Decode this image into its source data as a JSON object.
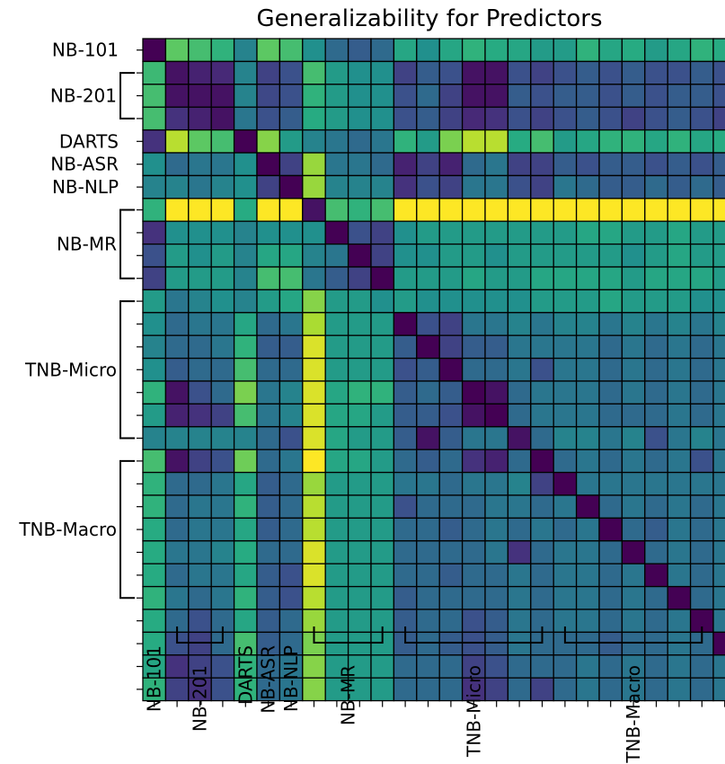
{
  "chart_data": {
    "type": "heatmap",
    "title": "Generalizability for Predictors",
    "groups": [
      {
        "name": "NB-101",
        "count": 1
      },
      {
        "name": "NB-201",
        "count": 3
      },
      {
        "name": "DARTS",
        "count": 1
      },
      {
        "name": "NB-ASR",
        "count": 1
      },
      {
        "name": "NB-NLP",
        "count": 1
      },
      {
        "name": "NB-MR",
        "count": 4
      },
      {
        "name": "TNB-Micro",
        "count": 7
      },
      {
        "name": "TNB-Macro",
        "count": 7
      }
    ],
    "colormap": "viridis",
    "value_range": [
      0,
      1
    ],
    "matrix": [
      [
        0.0,
        0.75,
        0.7,
        0.65,
        0.45,
        0.75,
        0.7,
        0.5,
        0.35,
        0.3,
        0.35,
        0.6,
        0.5,
        0.6,
        0.65,
        0.62,
        0.6,
        0.55,
        0.55,
        0.65,
        0.6,
        0.62,
        0.55,
        0.6,
        0.65,
        0.62,
        0.6,
        0.6,
        0.65
      ],
      [
        0.68,
        0.05,
        0.1,
        0.12,
        0.45,
        0.2,
        0.25,
        0.7,
        0.55,
        0.5,
        0.5,
        0.2,
        0.3,
        0.25,
        0.05,
        0.05,
        0.25,
        0.2,
        0.25,
        0.3,
        0.25,
        0.3,
        0.25,
        0.25,
        0.3,
        0.25,
        0.3,
        0.25,
        0.3
      ],
      [
        0.7,
        0.05,
        0.05,
        0.05,
        0.45,
        0.22,
        0.25,
        0.65,
        0.55,
        0.5,
        0.5,
        0.25,
        0.35,
        0.2,
        0.05,
        0.05,
        0.3,
        0.25,
        0.3,
        0.3,
        0.25,
        0.3,
        0.25,
        0.3,
        0.3,
        0.25,
        0.3,
        0.25,
        0.3
      ],
      [
        0.7,
        0.15,
        0.1,
        0.05,
        0.4,
        0.25,
        0.3,
        0.62,
        0.55,
        0.5,
        0.5,
        0.25,
        0.3,
        0.2,
        0.12,
        0.15,
        0.25,
        0.2,
        0.25,
        0.3,
        0.25,
        0.2,
        0.25,
        0.3,
        0.25,
        0.2,
        0.3,
        0.25,
        0.2
      ],
      [
        0.15,
        0.9,
        0.75,
        0.7,
        0.0,
        0.82,
        0.55,
        0.45,
        0.4,
        0.35,
        0.4,
        0.65,
        0.55,
        0.8,
        0.9,
        0.9,
        0.62,
        0.7,
        0.55,
        0.6,
        0.65,
        0.65,
        0.6,
        0.65,
        0.6,
        0.62,
        0.65,
        0.62,
        0.7
      ],
      [
        0.5,
        0.35,
        0.4,
        0.4,
        0.5,
        0.0,
        0.2,
        0.85,
        0.4,
        0.4,
        0.35,
        0.1,
        0.2,
        0.1,
        0.35,
        0.4,
        0.2,
        0.2,
        0.3,
        0.25,
        0.3,
        0.3,
        0.25,
        0.3,
        0.25,
        0.3,
        0.25,
        0.3,
        0.35
      ],
      [
        0.45,
        0.45,
        0.4,
        0.45,
        0.5,
        0.2,
        0.0,
        0.85,
        0.45,
        0.45,
        0.45,
        0.15,
        0.25,
        0.2,
        0.4,
        0.4,
        0.25,
        0.2,
        0.4,
        0.35,
        0.3,
        0.3,
        0.35,
        0.3,
        0.35,
        0.3,
        0.35,
        0.3,
        0.35
      ],
      [
        0.65,
        1.0,
        1.0,
        1.0,
        0.62,
        1.0,
        1.0,
        0.05,
        0.7,
        0.65,
        0.7,
        1.0,
        1.0,
        1.0,
        1.0,
        1.0,
        1.0,
        1.0,
        1.0,
        1.0,
        1.0,
        1.0,
        1.0,
        1.0,
        1.0,
        1.0,
        1.0,
        1.0,
        1.0
      ],
      [
        0.15,
        0.5,
        0.5,
        0.5,
        0.45,
        0.5,
        0.5,
        0.5,
        0.0,
        0.25,
        0.2,
        0.5,
        0.55,
        0.55,
        0.55,
        0.55,
        0.55,
        0.55,
        0.55,
        0.6,
        0.6,
        0.55,
        0.55,
        0.6,
        0.55,
        0.55,
        0.6,
        0.55,
        0.55
      ],
      [
        0.25,
        0.55,
        0.5,
        0.55,
        0.45,
        0.6,
        0.6,
        0.45,
        0.4,
        0.0,
        0.2,
        0.5,
        0.5,
        0.55,
        0.55,
        0.5,
        0.55,
        0.55,
        0.55,
        0.55,
        0.55,
        0.5,
        0.55,
        0.6,
        0.55,
        0.55,
        0.55,
        0.55,
        0.6
      ],
      [
        0.2,
        0.55,
        0.55,
        0.55,
        0.45,
        0.7,
        0.7,
        0.4,
        0.3,
        0.2,
        0.0,
        0.55,
        0.55,
        0.55,
        0.6,
        0.55,
        0.55,
        0.6,
        0.6,
        0.6,
        0.6,
        0.55,
        0.6,
        0.6,
        0.6,
        0.55,
        0.6,
        0.55,
        0.75
      ],
      [
        0.55,
        0.4,
        0.45,
        0.5,
        0.45,
        0.55,
        0.6,
        0.82,
        0.55,
        0.55,
        0.5,
        0.55,
        0.5,
        0.5,
        0.5,
        0.5,
        0.5,
        0.55,
        0.55,
        0.55,
        0.6,
        0.55,
        0.55,
        0.55,
        0.5,
        0.5,
        0.55,
        0.6,
        0.75
      ],
      [
        0.5,
        0.35,
        0.4,
        0.4,
        0.6,
        0.35,
        0.4,
        0.88,
        0.55,
        0.55,
        0.55,
        0.0,
        0.25,
        0.2,
        0.4,
        0.4,
        0.45,
        0.4,
        0.45,
        0.45,
        0.4,
        0.45,
        0.4,
        0.45,
        0.4,
        0.45,
        0.4,
        0.45,
        0.55
      ],
      [
        0.45,
        0.35,
        0.35,
        0.4,
        0.65,
        0.3,
        0.3,
        0.95,
        0.55,
        0.55,
        0.55,
        0.3,
        0.0,
        0.2,
        0.3,
        0.3,
        0.4,
        0.4,
        0.4,
        0.4,
        0.35,
        0.4,
        0.35,
        0.4,
        0.35,
        0.4,
        0.35,
        0.4,
        0.5
      ],
      [
        0.5,
        0.3,
        0.35,
        0.35,
        0.7,
        0.35,
        0.35,
        0.95,
        0.55,
        0.55,
        0.55,
        0.25,
        0.3,
        0.0,
        0.35,
        0.35,
        0.4,
        0.25,
        0.4,
        0.4,
        0.35,
        0.4,
        0.35,
        0.4,
        0.35,
        0.4,
        0.35,
        0.4,
        0.5
      ],
      [
        0.65,
        0.05,
        0.25,
        0.35,
        0.8,
        0.4,
        0.45,
        0.95,
        0.6,
        0.65,
        0.65,
        0.3,
        0.35,
        0.3,
        0.0,
        0.05,
        0.35,
        0.4,
        0.4,
        0.4,
        0.35,
        0.4,
        0.35,
        0.4,
        0.35,
        0.4,
        0.35,
        0.4,
        0.55
      ],
      [
        0.55,
        0.1,
        0.15,
        0.2,
        0.7,
        0.4,
        0.45,
        0.95,
        0.6,
        0.6,
        0.55,
        0.3,
        0.3,
        0.25,
        0.05,
        0.0,
        0.35,
        0.4,
        0.4,
        0.4,
        0.35,
        0.35,
        0.35,
        0.4,
        0.35,
        0.4,
        0.35,
        0.4,
        0.5
      ],
      [
        0.45,
        0.45,
        0.45,
        0.45,
        0.45,
        0.35,
        0.25,
        0.95,
        0.6,
        0.55,
        0.55,
        0.3,
        0.05,
        0.3,
        0.4,
        0.4,
        0.05,
        0.35,
        0.45,
        0.45,
        0.4,
        0.45,
        0.25,
        0.4,
        0.45,
        0.4,
        0.45,
        0.4,
        0.55
      ],
      [
        0.7,
        0.05,
        0.2,
        0.25,
        0.78,
        0.35,
        0.4,
        1.0,
        0.6,
        0.6,
        0.55,
        0.35,
        0.3,
        0.35,
        0.15,
        0.1,
        0.35,
        0.0,
        0.35,
        0.4,
        0.35,
        0.4,
        0.35,
        0.4,
        0.25,
        0.4,
        0.35,
        0.4,
        0.5
      ],
      [
        0.65,
        0.35,
        0.35,
        0.4,
        0.6,
        0.3,
        0.35,
        0.85,
        0.55,
        0.55,
        0.55,
        0.4,
        0.4,
        0.35,
        0.4,
        0.4,
        0.45,
        0.2,
        0.0,
        0.4,
        0.4,
        0.4,
        0.4,
        0.4,
        0.4,
        0.4,
        0.4,
        0.25,
        0.45
      ],
      [
        0.65,
        0.35,
        0.4,
        0.4,
        0.65,
        0.3,
        0.35,
        0.9,
        0.55,
        0.55,
        0.55,
        0.25,
        0.35,
        0.35,
        0.35,
        0.4,
        0.4,
        0.35,
        0.4,
        0.0,
        0.35,
        0.4,
        0.35,
        0.4,
        0.35,
        0.4,
        0.35,
        0.4,
        0.5
      ],
      [
        0.62,
        0.35,
        0.4,
        0.4,
        0.6,
        0.3,
        0.35,
        0.9,
        0.55,
        0.55,
        0.55,
        0.35,
        0.35,
        0.3,
        0.35,
        0.4,
        0.35,
        0.4,
        0.35,
        0.4,
        0.0,
        0.35,
        0.3,
        0.4,
        0.35,
        0.4,
        0.35,
        0.4,
        0.5
      ],
      [
        0.62,
        0.4,
        0.4,
        0.45,
        0.62,
        0.35,
        0.35,
        0.95,
        0.55,
        0.55,
        0.55,
        0.35,
        0.35,
        0.35,
        0.35,
        0.4,
        0.15,
        0.35,
        0.4,
        0.4,
        0.35,
        0.0,
        0.35,
        0.4,
        0.35,
        0.4,
        0.35,
        0.4,
        0.5
      ],
      [
        0.62,
        0.35,
        0.4,
        0.4,
        0.6,
        0.3,
        0.25,
        0.95,
        0.55,
        0.55,
        0.55,
        0.35,
        0.35,
        0.3,
        0.35,
        0.35,
        0.4,
        0.35,
        0.4,
        0.4,
        0.35,
        0.4,
        0.0,
        0.4,
        0.35,
        0.4,
        0.35,
        0.4,
        0.5
      ],
      [
        0.65,
        0.4,
        0.35,
        0.4,
        0.65,
        0.3,
        0.25,
        0.9,
        0.55,
        0.55,
        0.55,
        0.3,
        0.35,
        0.35,
        0.35,
        0.35,
        0.4,
        0.35,
        0.4,
        0.4,
        0.35,
        0.4,
        0.35,
        0.0,
        0.35,
        0.4,
        0.35,
        0.4,
        0.5
      ],
      [
        0.62,
        0.35,
        0.25,
        0.35,
        0.6,
        0.3,
        0.35,
        0.85,
        0.55,
        0.55,
        0.55,
        0.3,
        0.35,
        0.35,
        0.25,
        0.3,
        0.4,
        0.35,
        0.4,
        0.4,
        0.35,
        0.4,
        0.35,
        0.4,
        0.0,
        0.4,
        0.35,
        0.4,
        0.5
      ],
      [
        0.62,
        0.25,
        0.2,
        0.35,
        0.7,
        0.3,
        0.35,
        0.8,
        0.55,
        0.55,
        0.55,
        0.3,
        0.35,
        0.3,
        0.25,
        0.3,
        0.4,
        0.35,
        0.35,
        0.35,
        0.3,
        0.35,
        0.35,
        0.4,
        0.35,
        0.0,
        0.35,
        0.4,
        0.5
      ],
      [
        0.6,
        0.15,
        0.2,
        0.25,
        0.65,
        0.35,
        0.4,
        0.82,
        0.55,
        0.55,
        0.55,
        0.35,
        0.35,
        0.35,
        0.2,
        0.25,
        0.35,
        0.35,
        0.35,
        0.4,
        0.35,
        0.4,
        0.35,
        0.4,
        0.35,
        0.4,
        0.0,
        0.1,
        0.4
      ],
      [
        0.65,
        0.2,
        0.15,
        0.25,
        0.65,
        0.35,
        0.4,
        0.82,
        0.55,
        0.55,
        0.55,
        0.35,
        0.35,
        0.35,
        0.15,
        0.2,
        0.35,
        0.2,
        0.35,
        0.4,
        0.35,
        0.4,
        0.35,
        0.4,
        0.35,
        0.4,
        0.35,
        0.2,
        0.0
      ]
    ]
  }
}
